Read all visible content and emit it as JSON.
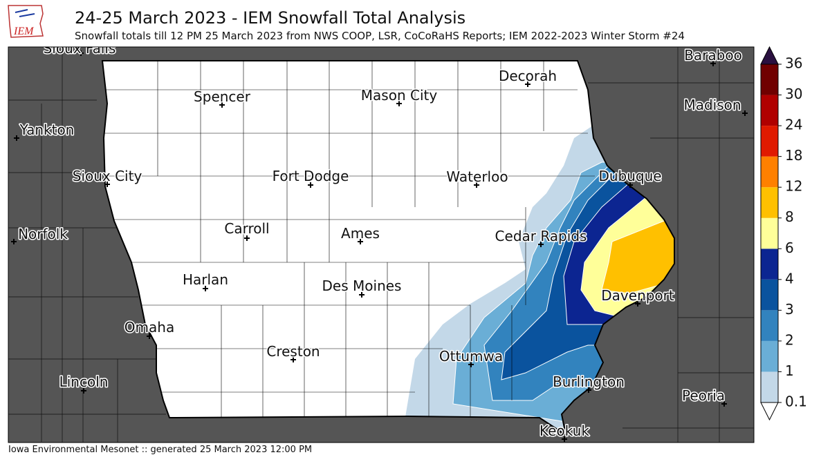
{
  "logo_text": "IEM",
  "title": "24-25 March 2023 - IEM Snowfall Total Analysis",
  "subtitle": "Snowfall totals till 12 PM 25 March 2023 from NWS COOP, LSR, CoCoRaHS Reports; IEM 2022-2023 Winter Storm #24",
  "footer": "Iowa Environmental Mesonet :: generated 25 March 2023 12:00 PM",
  "cities": [
    "Sioux Falls",
    "Spencer",
    "Mason City",
    "Decorah",
    "Baraboo",
    "Madison",
    "Yankton",
    "Sioux City",
    "Fort Dodge",
    "Waterloo",
    "Dubuque",
    "Norfolk",
    "Carroll",
    "Ames",
    "Cedar Rapids",
    "Harlan",
    "Des Moines",
    "Davenport",
    "Omaha",
    "Creston",
    "Ottumwa",
    "Lincoln",
    "Burlington",
    "Peoria",
    "Keokuk"
  ],
  "colorbar": {
    "ticks": [
      0.1,
      1,
      2,
      3,
      4,
      6,
      8,
      12,
      18,
      24,
      30,
      36
    ],
    "colors": [
      "#c3d8e8",
      "#6aaed6",
      "#3283be",
      "#0a539e",
      "#0c2591",
      "#ffff99",
      "#ffc000",
      "#ff8000",
      "#e01a00",
      "#b00000",
      "#700000"
    ],
    "over_color": "#2a1040",
    "under_color": "#ffffff"
  }
}
